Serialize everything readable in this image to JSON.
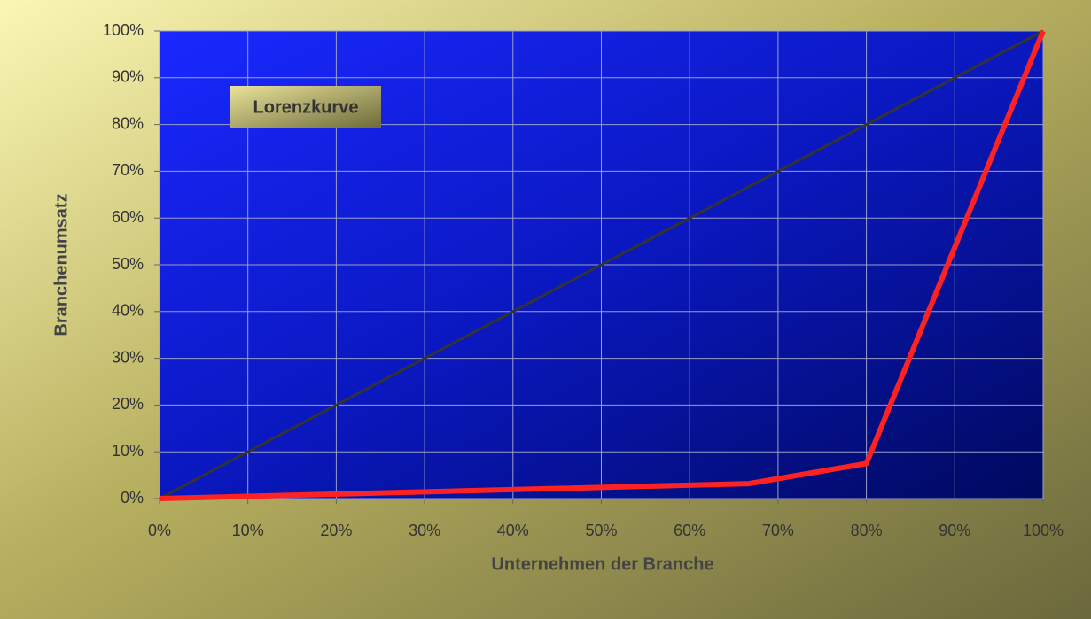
{
  "chart_data": {
    "type": "line",
    "xlabel": "Unternehmen der Branche",
    "ylabel": "Branchenumsatz",
    "annotation": "Lorenzkurve",
    "xlim": [
      0,
      100
    ],
    "ylim": [
      0,
      100
    ],
    "xticks": [
      {
        "value": 0,
        "label": "0%"
      },
      {
        "value": 10,
        "label": "10%"
      },
      {
        "value": 20,
        "label": "20%"
      },
      {
        "value": 30,
        "label": "30%"
      },
      {
        "value": 40,
        "label": "40%"
      },
      {
        "value": 50,
        "label": "50%"
      },
      {
        "value": 60,
        "label": "60%"
      },
      {
        "value": 70,
        "label": "70%"
      },
      {
        "value": 80,
        "label": "80%"
      },
      {
        "value": 90,
        "label": "90%"
      },
      {
        "value": 100,
        "label": "100%"
      }
    ],
    "yticks": [
      {
        "value": 0,
        "label": "0%"
      },
      {
        "value": 10,
        "label": "10%"
      },
      {
        "value": 20,
        "label": "20%"
      },
      {
        "value": 30,
        "label": "30%"
      },
      {
        "value": 40,
        "label": "40%"
      },
      {
        "value": 50,
        "label": "50%"
      },
      {
        "value": 60,
        "label": "60%"
      },
      {
        "value": 70,
        "label": "70%"
      },
      {
        "value": 80,
        "label": "80%"
      },
      {
        "value": 90,
        "label": "90%"
      },
      {
        "value": 100,
        "label": "100%"
      }
    ],
    "grid": true,
    "series": [
      {
        "color": "#333333",
        "x": [
          0,
          100
        ],
        "values": [
          0,
          100
        ]
      },
      {
        "color": "#ff2222",
        "x": [
          0,
          66.7,
          80,
          100
        ],
        "values": [
          0,
          3.2,
          7.5,
          100
        ]
      }
    ]
  }
}
